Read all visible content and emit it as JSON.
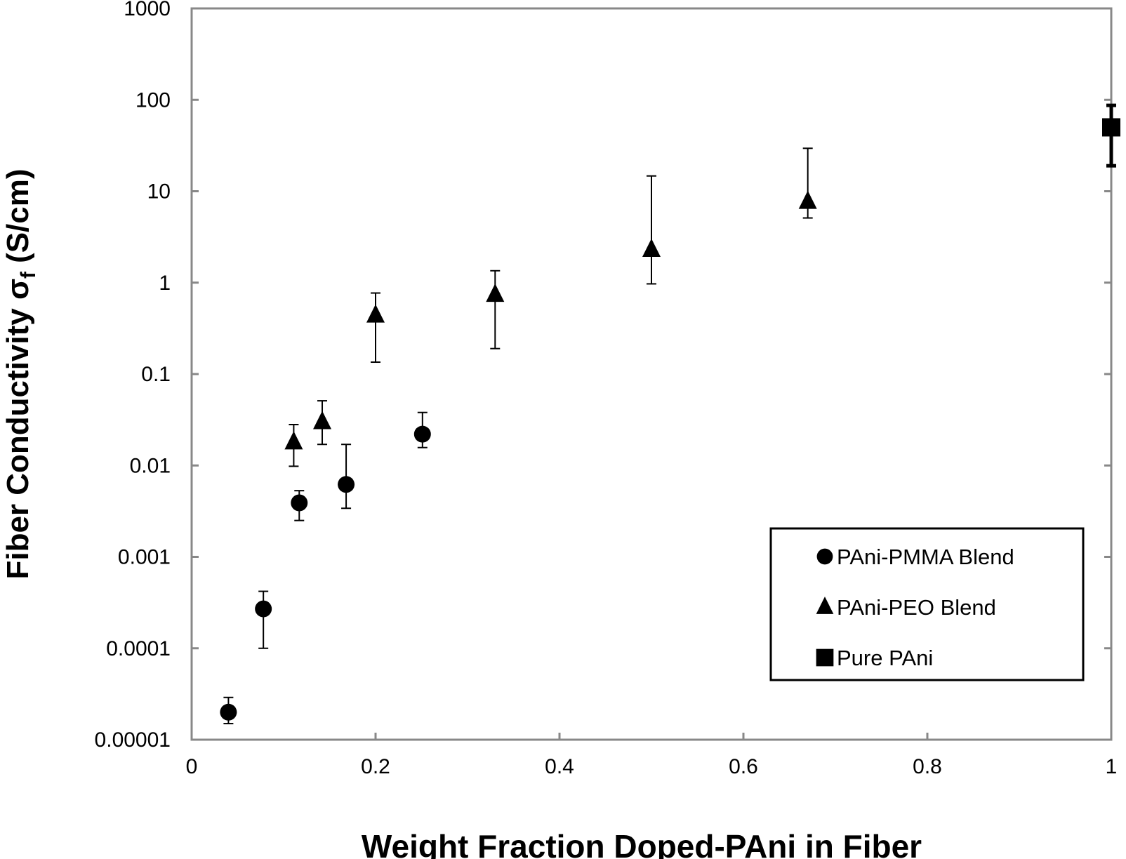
{
  "chart_data": {
    "type": "scatter",
    "title": "",
    "xlabel": "Weight Fraction Doped-PAni in Fiber",
    "ylabel_main": "Fiber Conductivity σ",
    "ylabel_sub": "f",
    "ylabel_units": "(S/cm)",
    "yscale": "log",
    "xlim": [
      0,
      1
    ],
    "ylim": [
      1e-05,
      1000
    ],
    "x_ticks": [
      0,
      0.2,
      0.4,
      0.6,
      0.8,
      1
    ],
    "x_tick_labels": [
      "0",
      "0.2",
      "0.4",
      "0.6",
      "0.8",
      "1"
    ],
    "y_ticks": [
      1e-05,
      0.0001,
      0.001,
      0.01,
      0.1,
      1,
      10,
      100,
      1000
    ],
    "y_tick_labels": [
      "0.00001",
      "0.0001",
      "0.001",
      "0.01",
      "0.1",
      "1",
      "10",
      "100",
      "1000"
    ],
    "grid": false,
    "legend_position": "bottom-right",
    "series": [
      {
        "name": "PAni-PMMA Blend",
        "marker": "circle",
        "points": [
          {
            "x": 0.04,
            "y": 2e-05,
            "err_low": 1.5e-05,
            "err_high": 2.9e-05
          },
          {
            "x": 0.078,
            "y": 0.00027,
            "err_low": 0.0001,
            "err_high": 0.00042
          },
          {
            "x": 0.117,
            "y": 0.0039,
            "err_low": 0.0025,
            "err_high": 0.0053
          },
          {
            "x": 0.168,
            "y": 0.0062,
            "err_low": 0.0034,
            "err_high": 0.017
          },
          {
            "x": 0.251,
            "y": 0.022,
            "err_low": 0.0157,
            "err_high": 0.038
          }
        ]
      },
      {
        "name": "PAni-PEO Blend",
        "marker": "triangle",
        "points": [
          {
            "x": 0.111,
            "y": 0.018,
            "err_low": 0.0098,
            "err_high": 0.028
          },
          {
            "x": 0.142,
            "y": 0.03,
            "err_low": 0.017,
            "err_high": 0.051
          },
          {
            "x": 0.2,
            "y": 0.44,
            "err_low": 0.135,
            "err_high": 0.77
          },
          {
            "x": 0.33,
            "y": 0.74,
            "err_low": 0.19,
            "err_high": 1.35
          },
          {
            "x": 0.5,
            "y": 2.3,
            "err_low": 0.97,
            "err_high": 14.7
          },
          {
            "x": 0.67,
            "y": 7.7,
            "err_low": 5.1,
            "err_high": 29.5
          }
        ]
      },
      {
        "name": "Pure PAni",
        "marker": "square",
        "points": [
          {
            "x": 1.0,
            "y": 50,
            "err_low": 19,
            "err_high": 87
          }
        ]
      }
    ]
  }
}
